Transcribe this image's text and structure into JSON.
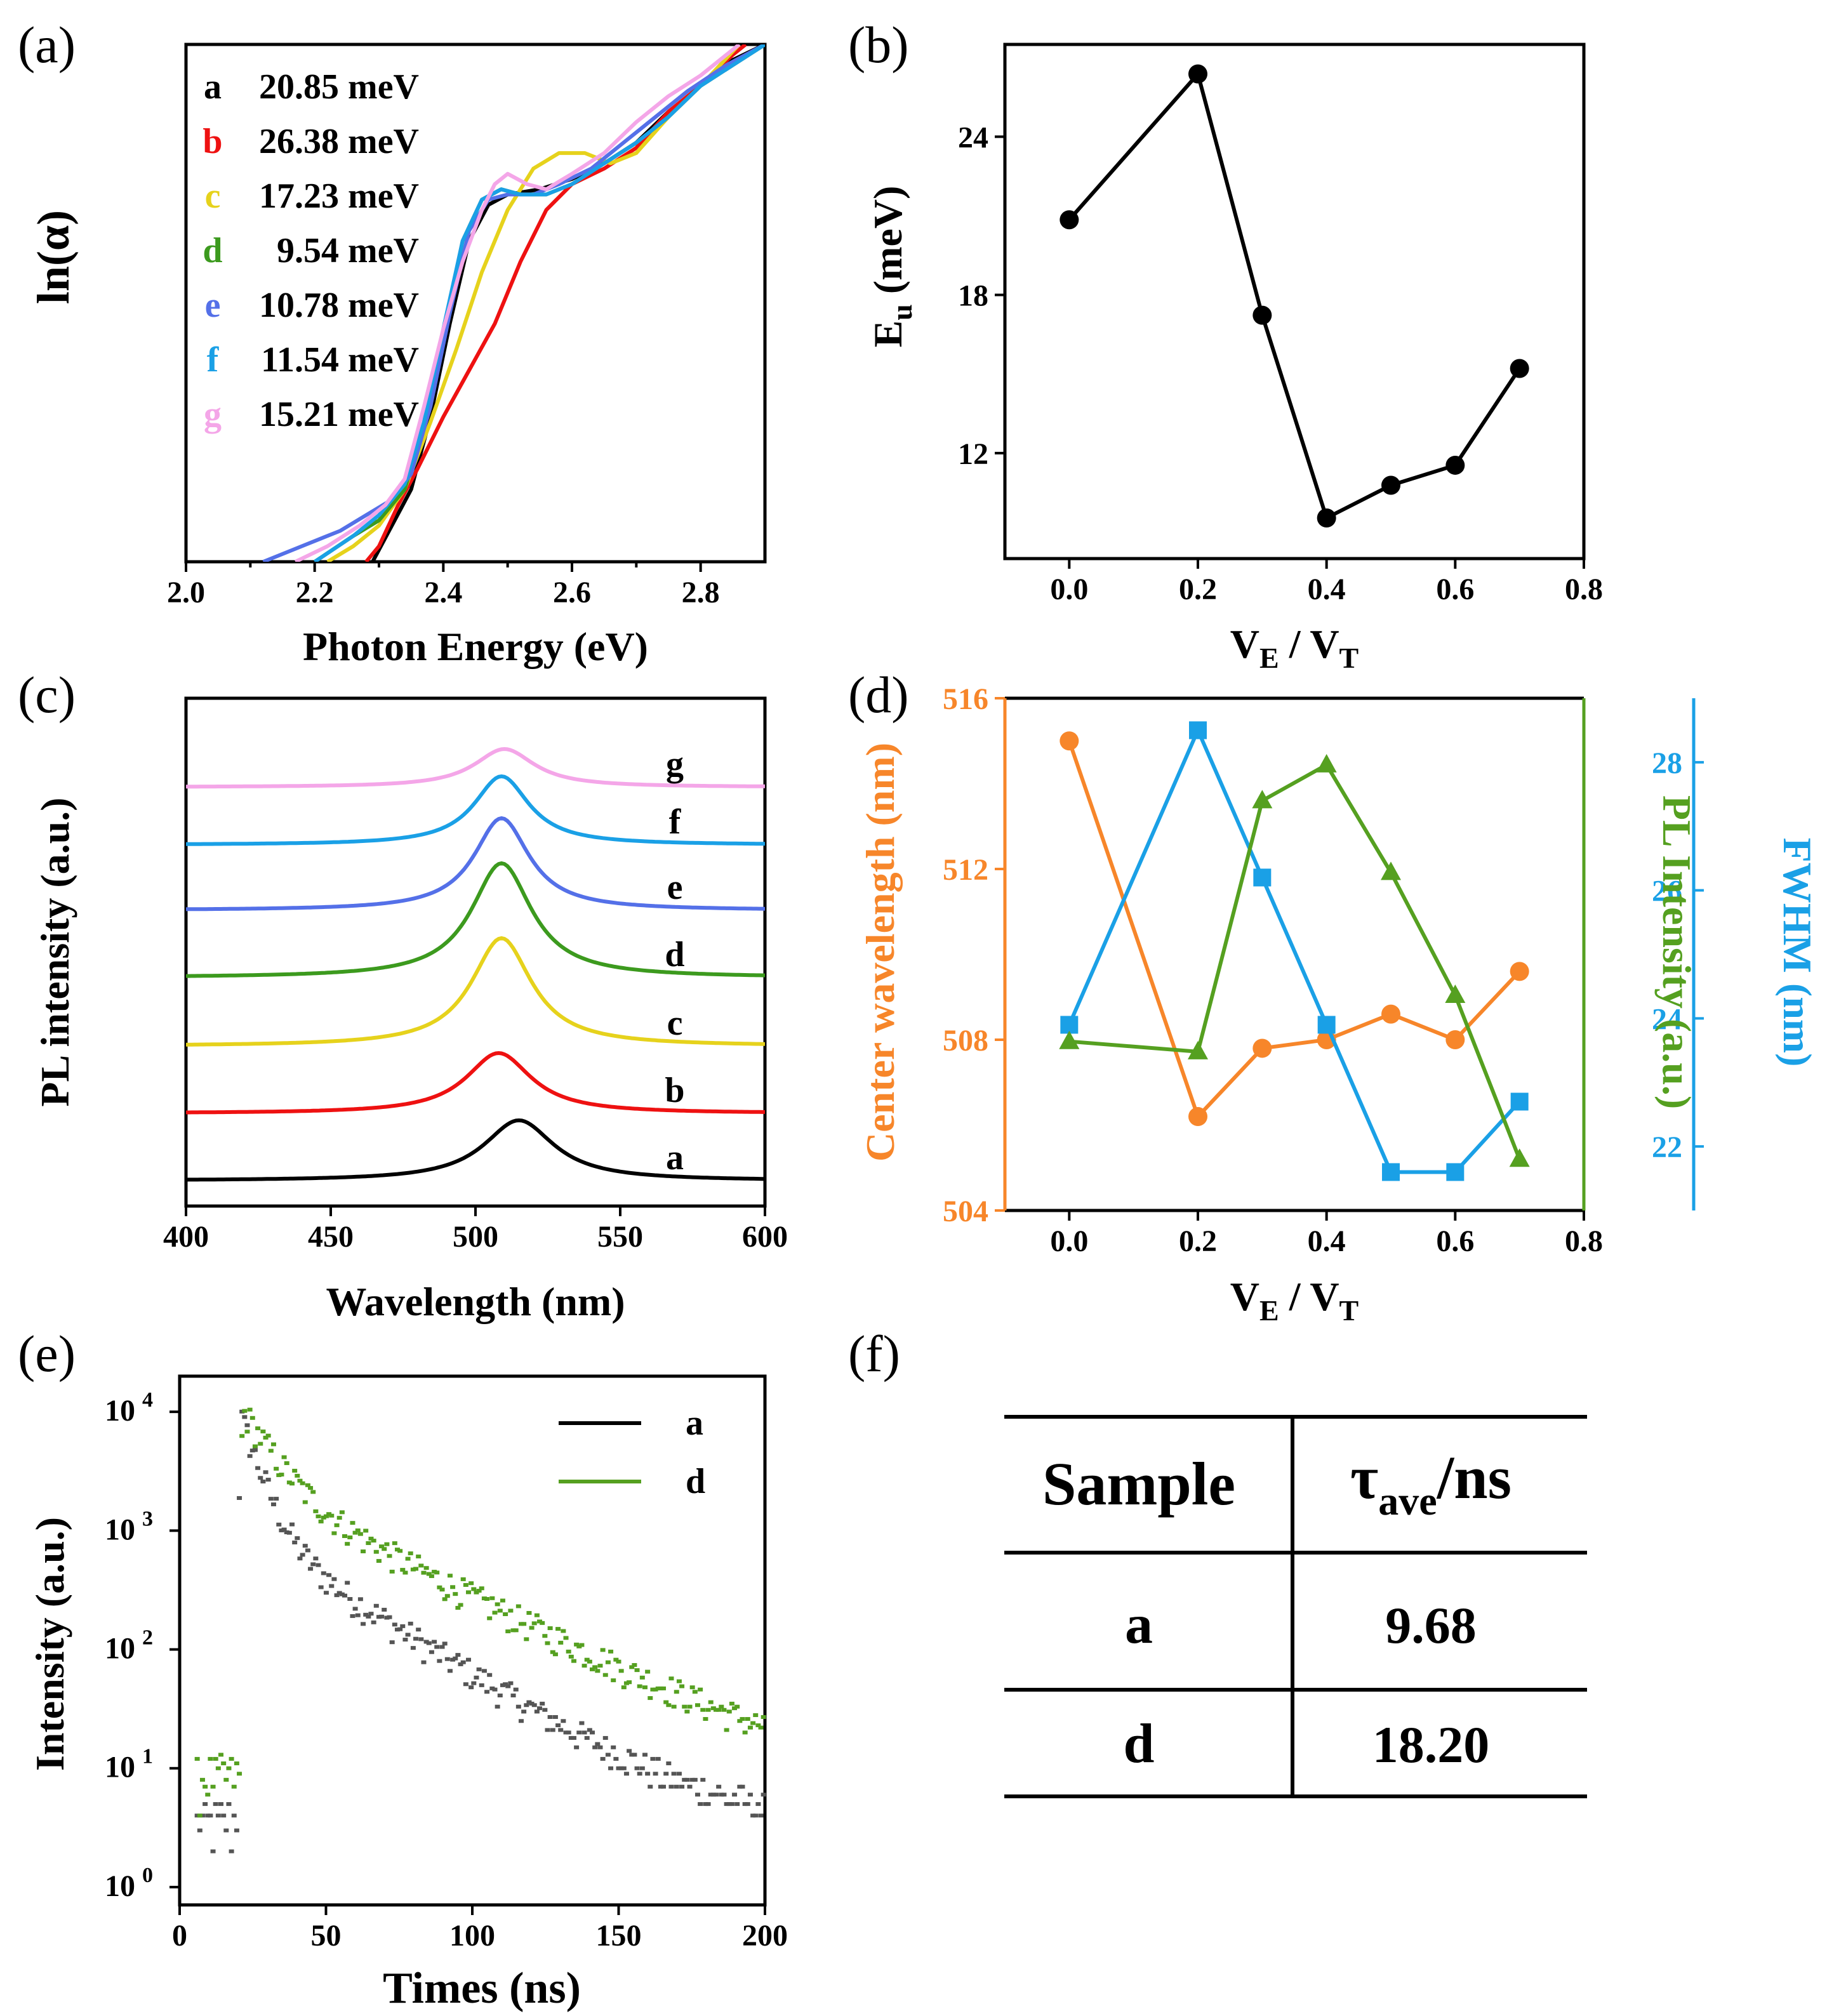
{
  "panel_labels": [
    "(a)",
    "(b)",
    "(c)",
    "(d)",
    "(e)",
    "(f)"
  ],
  "colors": {
    "a": "#000000",
    "b": "#ee1111",
    "c": "#e6d21c",
    "d": "#3c9a1e",
    "e": "#5470e8",
    "f": "#1aa0e6",
    "g": "#f4a6e8",
    "orange": "#f7862a",
    "green": "#55a020",
    "blue": "#1aa0e6"
  },
  "chart_data": [
    {
      "id": "a",
      "type": "line",
      "title": "",
      "xlabel": "Photon Energy (eV)",
      "ylabel": "ln(α)",
      "xlim": [
        2.0,
        2.9
      ],
      "ylim": [
        0,
        1
      ],
      "xticks": [
        "2.0",
        "2.2",
        "2.4",
        "2.6",
        "2.8"
      ],
      "legend": [
        {
          "key": "a",
          "label": "20.85 meV"
        },
        {
          "key": "b",
          "label": "26.38 meV"
        },
        {
          "key": "c",
          "label": "17.23 meV"
        },
        {
          "key": "d",
          "label": "9.54 meV"
        },
        {
          "key": "e",
          "label": "10.78 meV"
        },
        {
          "key": "f",
          "label": "11.54 meV"
        },
        {
          "key": "g",
          "label": "15.21 meV"
        }
      ],
      "series": [
        {
          "name": "a",
          "x": [
            2.29,
            2.32,
            2.35,
            2.38,
            2.41,
            2.44,
            2.47,
            2.5,
            2.55,
            2.6,
            2.65,
            2.7,
            2.75,
            2.8,
            2.85,
            2.9
          ],
          "y": [
            0.0,
            0.07,
            0.14,
            0.28,
            0.46,
            0.62,
            0.69,
            0.71,
            0.72,
            0.74,
            0.77,
            0.81,
            0.87,
            0.92,
            0.97,
            1.0
          ]
        },
        {
          "name": "b",
          "x": [
            2.28,
            2.3,
            2.33,
            2.36,
            2.4,
            2.44,
            2.48,
            2.52,
            2.56,
            2.6,
            2.65,
            2.7,
            2.75,
            2.8,
            2.85,
            2.87
          ],
          "y": [
            0.0,
            0.03,
            0.11,
            0.18,
            0.28,
            0.37,
            0.46,
            0.58,
            0.68,
            0.73,
            0.76,
            0.8,
            0.87,
            0.92,
            0.98,
            1.0
          ]
        },
        {
          "name": "c",
          "x": [
            2.22,
            2.26,
            2.3,
            2.34,
            2.38,
            2.42,
            2.46,
            2.5,
            2.54,
            2.58,
            2.62,
            2.66,
            2.7,
            2.75,
            2.8,
            2.86
          ],
          "y": [
            0.0,
            0.03,
            0.07,
            0.14,
            0.27,
            0.41,
            0.56,
            0.68,
            0.76,
            0.79,
            0.79,
            0.77,
            0.79,
            0.86,
            0.92,
            1.0
          ]
        },
        {
          "name": "d",
          "x": [
            2.2,
            2.26,
            2.3,
            2.34,
            2.37,
            2.4,
            2.43,
            2.46,
            2.49,
            2.52,
            2.56,
            2.6,
            2.65,
            2.7,
            2.75,
            2.8,
            2.85,
            2.9
          ],
          "y": [
            0.0,
            0.05,
            0.08,
            0.14,
            0.26,
            0.44,
            0.62,
            0.7,
            0.72,
            0.71,
            0.71,
            0.73,
            0.77,
            0.81,
            0.86,
            0.92,
            0.96,
            1.0
          ]
        },
        {
          "name": "e",
          "x": [
            2.12,
            2.18,
            2.24,
            2.28,
            2.32,
            2.35,
            2.38,
            2.41,
            2.44,
            2.47,
            2.5,
            2.54,
            2.58,
            2.63,
            2.68,
            2.73,
            2.78,
            2.84,
            2.9
          ],
          "y": [
            0.0,
            0.03,
            0.06,
            0.09,
            0.12,
            0.17,
            0.3,
            0.48,
            0.64,
            0.7,
            0.71,
            0.71,
            0.73,
            0.76,
            0.81,
            0.86,
            0.91,
            0.96,
            1.0
          ]
        },
        {
          "name": "f",
          "x": [
            2.2,
            2.26,
            2.3,
            2.34,
            2.37,
            2.4,
            2.43,
            2.46,
            2.49,
            2.52,
            2.56,
            2.6,
            2.65,
            2.7,
            2.75,
            2.8,
            2.85,
            2.9
          ],
          "y": [
            0.0,
            0.05,
            0.09,
            0.15,
            0.27,
            0.45,
            0.62,
            0.7,
            0.72,
            0.71,
            0.71,
            0.73,
            0.77,
            0.81,
            0.86,
            0.92,
            0.96,
            1.0
          ]
        },
        {
          "name": "g",
          "x": [
            2.17,
            2.22,
            2.27,
            2.31,
            2.34,
            2.37,
            2.4,
            2.43,
            2.46,
            2.48,
            2.5,
            2.53,
            2.56,
            2.6,
            2.65,
            2.7,
            2.75,
            2.8,
            2.86
          ],
          "y": [
            0.0,
            0.03,
            0.07,
            0.11,
            0.16,
            0.3,
            0.45,
            0.58,
            0.68,
            0.73,
            0.75,
            0.73,
            0.72,
            0.75,
            0.79,
            0.85,
            0.9,
            0.94,
            1.0
          ]
        }
      ]
    },
    {
      "id": "b",
      "type": "line",
      "xlabel": "V",
      "xlabel_sub1": "E",
      "xlabel_sep": " / V",
      "xlabel_sub2": "T",
      "ylabel": "E",
      "ylabel_sub": "u",
      "ylabel_unit": " (meV)",
      "xlim": [
        -0.1,
        0.8
      ],
      "ylim": [
        8.0,
        27.5
      ],
      "xticks": [
        "0.0",
        "0.2",
        "0.4",
        "0.6",
        "0.8"
      ],
      "yticks": [
        "12",
        "18",
        "24"
      ],
      "x": [
        0.0,
        0.2,
        0.3,
        0.4,
        0.5,
        0.6,
        0.7
      ],
      "values": [
        20.85,
        26.38,
        17.23,
        9.54,
        10.78,
        11.54,
        15.21
      ]
    },
    {
      "id": "c",
      "type": "line",
      "xlabel": "Wavelength (nm)",
      "ylabel": "PL intensity (a.u.)",
      "xlim": [
        400,
        600
      ],
      "xticks": [
        "400",
        "450",
        "500",
        "550",
        "600"
      ],
      "series": [
        {
          "name": "a",
          "center": 515,
          "width": 14,
          "height": 95,
          "baseline": 40
        },
        {
          "name": "b",
          "center": 508,
          "width": 13,
          "height": 95,
          "baseline": 146
        },
        {
          "name": "c",
          "center": 509,
          "width": 12,
          "height": 170,
          "baseline": 252
        },
        {
          "name": "d",
          "center": 509,
          "width": 12,
          "height": 180,
          "baseline": 360
        },
        {
          "name": "e",
          "center": 509,
          "width": 11,
          "height": 145,
          "baseline": 466
        },
        {
          "name": "f",
          "center": 509,
          "width": 11,
          "height": 108,
          "baseline": 569
        },
        {
          "name": "g",
          "center": 510,
          "width": 12,
          "height": 60,
          "baseline": 660
        }
      ]
    },
    {
      "id": "d",
      "type": "line",
      "xlabel": "V",
      "xlabel_sub1": "E",
      "xlabel_sep": " / V",
      "xlabel_sub2": "T",
      "xlim": [
        -0.1,
        0.8
      ],
      "xticks": [
        "0.0",
        "0.2",
        "0.4",
        "0.6",
        "0.8"
      ],
      "x": [
        0.0,
        0.2,
        0.3,
        0.4,
        0.5,
        0.6,
        0.7
      ],
      "series": [
        {
          "name": "Center wavelength (nm)",
          "axis": "left",
          "ylim": [
            504,
            516
          ],
          "yticks": [
            "504",
            "508",
            "512",
            "516"
          ],
          "values": [
            515.0,
            506.2,
            507.8,
            508.0,
            508.6,
            508.0,
            509.6
          ]
        },
        {
          "name": "PL Intensity (a.u.)",
          "axis": "right-inner",
          "ylim": [
            0,
            1
          ],
          "values": [
            0.33,
            0.31,
            0.8,
            0.87,
            0.66,
            0.42,
            0.1
          ]
        },
        {
          "name": "FWHM (nm)",
          "axis": "right-outer",
          "ylim": [
            21,
            29
          ],
          "yticks": [
            "22",
            "24",
            "26",
            "28"
          ],
          "values": [
            23.9,
            28.5,
            26.2,
            23.9,
            21.6,
            21.6,
            22.7
          ]
        }
      ]
    },
    {
      "id": "e",
      "type": "scatter",
      "xlabel": "Times (ns)",
      "ylabel": "Intensity (a.u.)",
      "xlim": [
        0,
        200
      ],
      "ylim_log10": [
        -0.15,
        4.3
      ],
      "xticks": [
        "0",
        "50",
        "100",
        "150",
        "200"
      ],
      "ytick_base": "10",
      "ytick_exps": [
        "0",
        "1",
        "2",
        "3",
        "4"
      ],
      "legend": [
        {
          "key": "a",
          "label": "a"
        },
        {
          "key": "d",
          "label": "d"
        }
      ],
      "series": [
        {
          "name": "a",
          "peak_time": 21,
          "peak": 9000,
          "tau1": 5.5,
          "amp1": 8000,
          "tau2": 28,
          "amp2": 1000,
          "background": 3
        },
        {
          "name": "d",
          "peak_time": 22,
          "peak": 10000,
          "tau1": 9,
          "amp1": 7500,
          "tau2": 35,
          "amp2": 2500,
          "background": 7
        }
      ]
    },
    {
      "id": "f",
      "type": "table",
      "headers": [
        "Sample",
        "τ",
        "ave",
        "/ns"
      ],
      "rows": [
        [
          "a",
          "9.68"
        ],
        [
          "d",
          "18.20"
        ]
      ]
    }
  ]
}
